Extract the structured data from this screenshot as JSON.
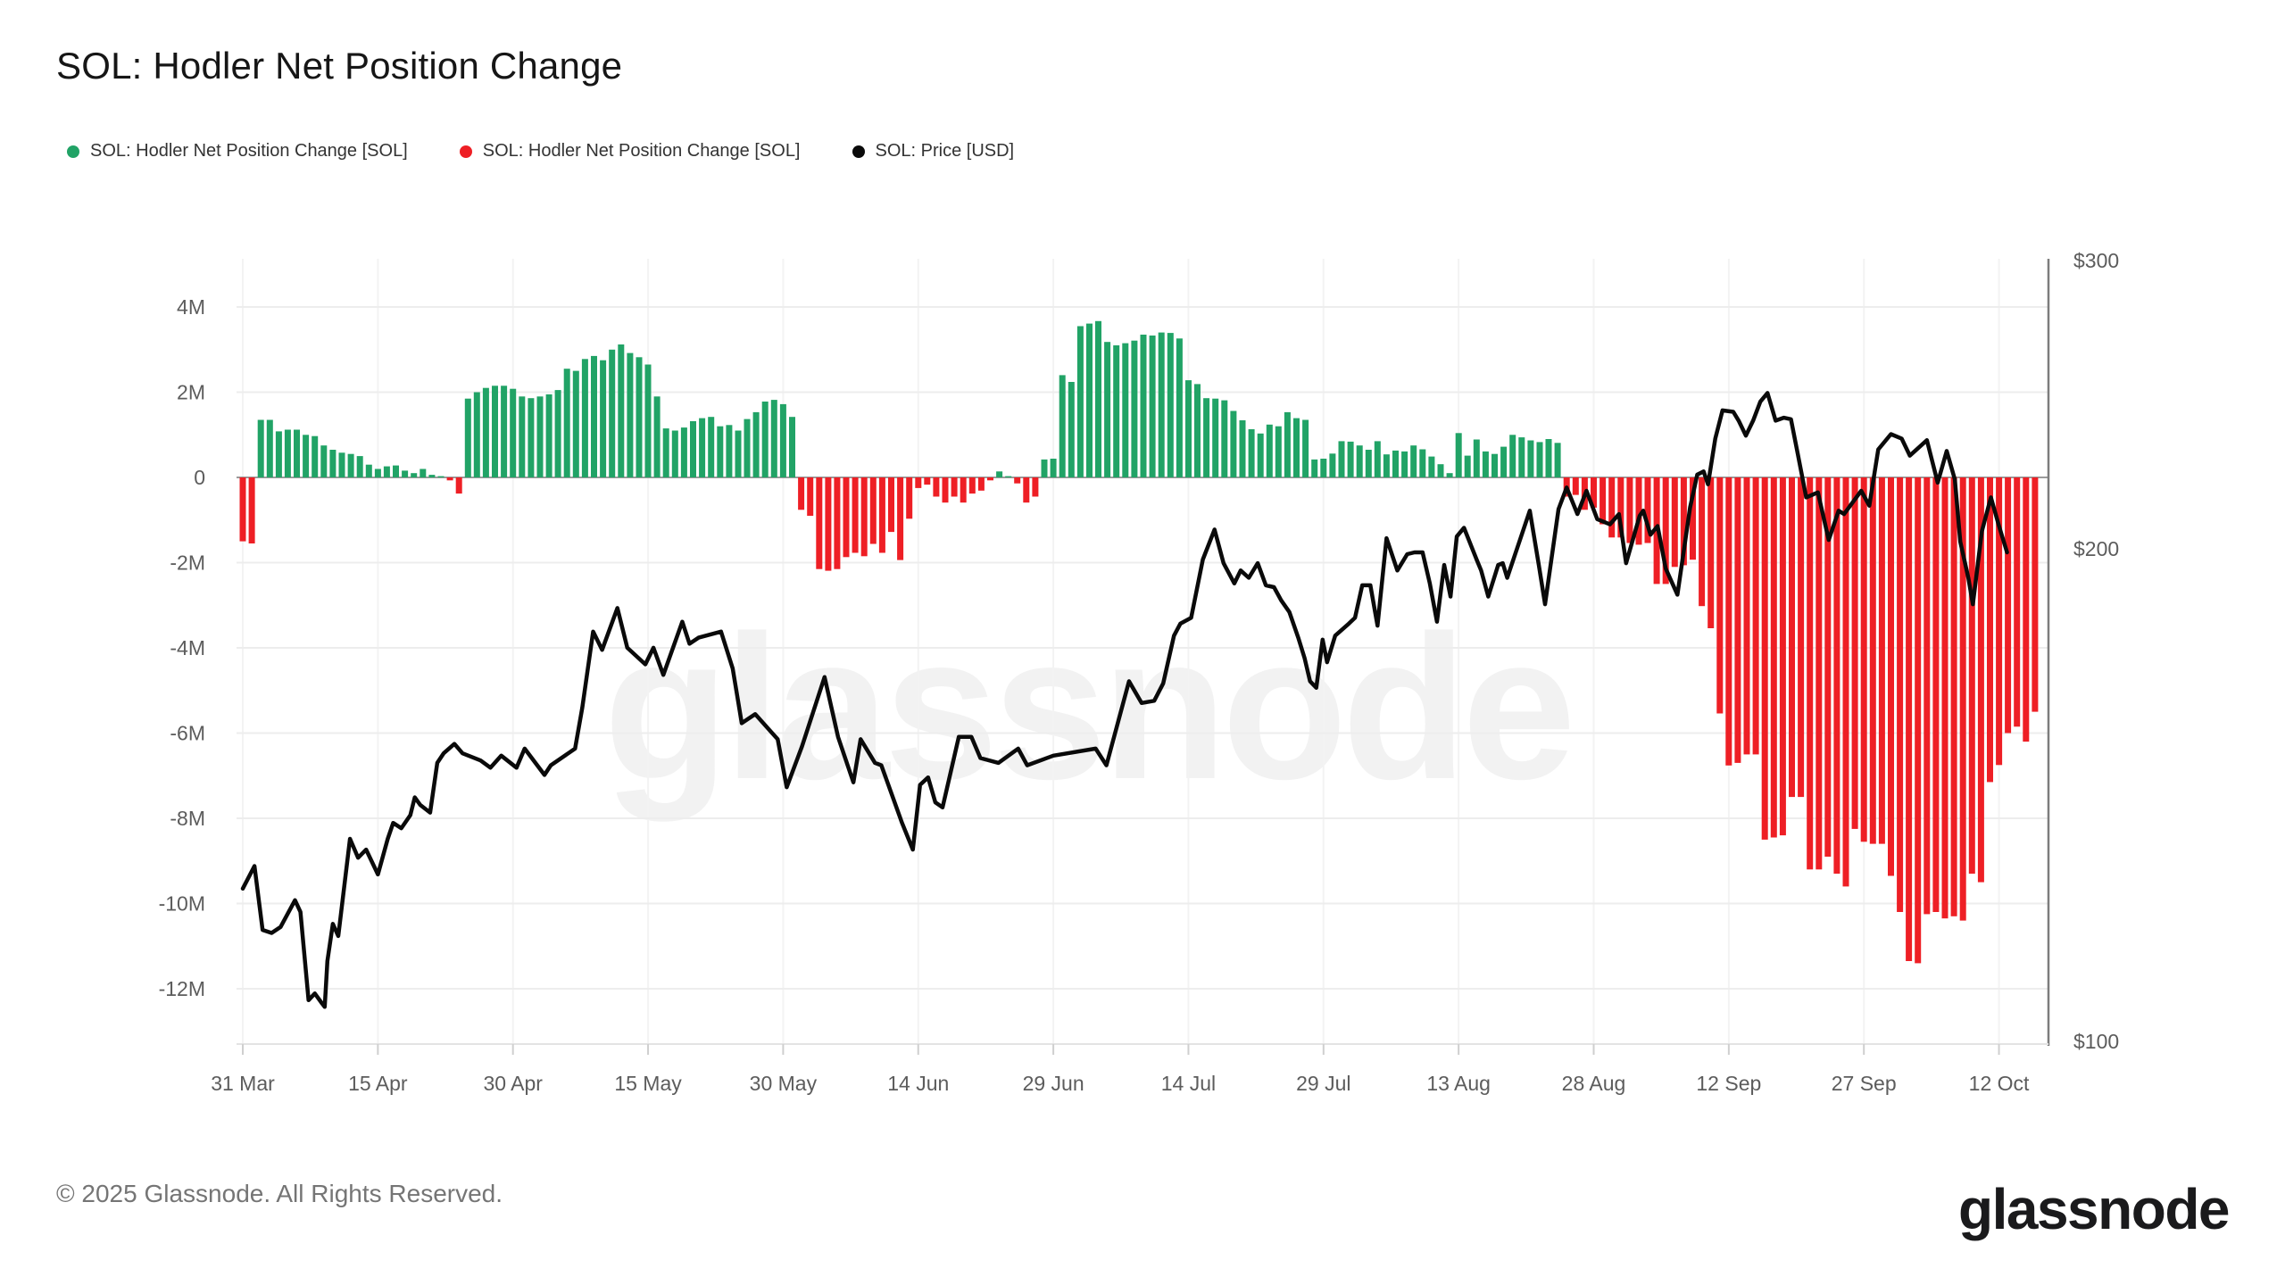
{
  "page": {
    "title": "SOL: Hodler Net Position Change",
    "watermark": "glassnode",
    "footer_copyright": "© 2025 Glassnode. All Rights Reserved.",
    "footer_logo": "glassnode"
  },
  "legend": {
    "items": [
      {
        "label": "SOL: Hodler Net Position Change [SOL]",
        "color": "#21a366"
      },
      {
        "label": "SOL: Hodler Net Position Change [SOL]",
        "color": "#ee1f25"
      },
      {
        "label": "SOL: Price [USD]",
        "color": "#0a0a0a"
      }
    ]
  },
  "chart_data": {
    "type": "bar+line",
    "title": "SOL: Hodler Net Position Change",
    "legend_position": "top-left",
    "grid": true,
    "x_axis": {
      "tick_labels": [
        "31 Mar",
        "15 Apr",
        "30 Apr",
        "15 May",
        "30 May",
        "14 Jun",
        "29 Jun",
        "14 Jul",
        "29 Jul",
        "13 Aug",
        "28 Aug",
        "12 Sep",
        "27 Sep",
        "12 Oct"
      ],
      "tick_interval_days": 15
    },
    "left_axis": {
      "unit": "M SOL",
      "tick_labels": [
        "4M",
        "2M",
        "0",
        "-2M",
        "-4M",
        "-6M",
        "-8M",
        "-10M",
        "-12M"
      ],
      "tick_values": [
        4,
        2,
        0,
        -2,
        -4,
        -6,
        -8,
        -10,
        -12
      ],
      "range": [
        -13.2,
        5.1
      ]
    },
    "right_axis": {
      "unit": "USD",
      "scale": "log",
      "tick_labels": [
        "$300",
        "$200",
        "$100"
      ],
      "tick_values": [
        300,
        200,
        100
      ],
      "range": [
        96,
        302
      ]
    },
    "series": [
      {
        "name": "SOL: Hodler Net Position Change [SOL]",
        "type": "bar",
        "unit": "millions of SOL, daily",
        "positive_color": "#21a366",
        "negative_color": "#ee1f25",
        "values": [
          -1.5,
          -1.55,
          1.35,
          1.35,
          1.08,
          1.12,
          1.12,
          1.0,
          0.97,
          0.75,
          0.65,
          0.58,
          0.55,
          0.5,
          0.3,
          0.2,
          0.26,
          0.28,
          0.16,
          0.1,
          0.2,
          0.06,
          0.03,
          -0.07,
          -0.38,
          1.85,
          2.0,
          2.1,
          2.15,
          2.15,
          2.08,
          1.9,
          1.86,
          1.9,
          1.95,
          2.05,
          2.55,
          2.5,
          2.78,
          2.85,
          2.75,
          3.0,
          3.12,
          2.92,
          2.82,
          2.65,
          1.9,
          1.15,
          1.1,
          1.17,
          1.32,
          1.39,
          1.42,
          1.2,
          1.23,
          1.1,
          1.37,
          1.53,
          1.78,
          1.82,
          1.72,
          1.42,
          -0.76,
          -0.9,
          -2.15,
          -2.19,
          -2.15,
          -1.87,
          -1.77,
          -1.85,
          -1.56,
          -1.77,
          -1.28,
          -1.94,
          -0.97,
          -0.25,
          -0.17,
          -0.45,
          -0.59,
          -0.45,
          -0.59,
          -0.38,
          -0.31,
          -0.07,
          0.14,
          0.03,
          -0.14,
          -0.59,
          -0.45,
          0.42,
          0.44,
          2.4,
          2.24,
          3.55,
          3.61,
          3.67,
          3.18,
          3.1,
          3.15,
          3.21,
          3.35,
          3.33,
          3.4,
          3.39,
          3.26,
          2.28,
          2.19,
          1.86,
          1.85,
          1.81,
          1.56,
          1.34,
          1.13,
          1.03,
          1.24,
          1.2,
          1.53,
          1.39,
          1.35,
          0.42,
          0.44,
          0.56,
          0.85,
          0.84,
          0.75,
          0.65,
          0.85,
          0.54,
          0.63,
          0.61,
          0.75,
          0.66,
          0.49,
          0.31,
          0.1,
          1.04,
          0.51,
          0.89,
          0.61,
          0.55,
          0.72,
          1.0,
          0.94,
          0.87,
          0.83,
          0.9,
          0.81,
          -0.45,
          -0.41,
          -0.76,
          -0.71,
          -1.1,
          -1.41,
          -1.41,
          -1.54,
          -1.58,
          -1.54,
          -2.5,
          -2.5,
          -2.1,
          -2.06,
          -1.93,
          -3.02,
          -3.54,
          -5.54,
          -6.76,
          -6.7,
          -6.5,
          -6.5,
          -8.5,
          -8.45,
          -8.4,
          -7.5,
          -7.5,
          -9.2,
          -9.2,
          -8.9,
          -9.3,
          -9.6,
          -8.25,
          -8.55,
          -8.6,
          -8.6,
          -9.35,
          -10.2,
          -11.35,
          -11.4,
          -10.25,
          -10.2,
          -10.35,
          -10.3,
          -10.4,
          -9.3,
          -9.5,
          -7.15,
          -6.75,
          -6.0,
          -5.85,
          -6.2,
          -5.5
        ]
      },
      {
        "name": "SOL: Price [USD]",
        "type": "line",
        "axis": "right",
        "color": "#0a0a0a",
        "points": [
          [
            0,
            124
          ],
          [
            1.3,
            128
          ],
          [
            2.2,
            117
          ],
          [
            3.2,
            116.5
          ],
          [
            4.2,
            117.5
          ],
          [
            5.8,
            122
          ],
          [
            6.4,
            120
          ],
          [
            7.3,
            106
          ],
          [
            8,
            107
          ],
          [
            8.8,
            105.5
          ],
          [
            9.1,
            105
          ],
          [
            9.4,
            112
          ],
          [
            10,
            118
          ],
          [
            10.6,
            116
          ],
          [
            11.9,
            133
          ],
          [
            12.8,
            129.5
          ],
          [
            13.7,
            131
          ],
          [
            15,
            126.5
          ],
          [
            16.1,
            133
          ],
          [
            16.7,
            136
          ],
          [
            17.6,
            135
          ],
          [
            18.6,
            137.5
          ],
          [
            19.1,
            141
          ],
          [
            19.7,
            139.5
          ],
          [
            20.8,
            138
          ],
          [
            21.6,
            148
          ],
          [
            22.3,
            150
          ],
          [
            23.5,
            152
          ],
          [
            24.4,
            150
          ],
          [
            26.4,
            148.5
          ],
          [
            27.5,
            147
          ],
          [
            28.7,
            149.5
          ],
          [
            30.4,
            147
          ],
          [
            31.3,
            151
          ],
          [
            33.5,
            145.5
          ],
          [
            34.2,
            147.5
          ],
          [
            36.9,
            151
          ],
          [
            37.7,
            160
          ],
          [
            38.9,
            178
          ],
          [
            39.9,
            173.5
          ],
          [
            41.6,
            184
          ],
          [
            42.7,
            174
          ],
          [
            44.7,
            170
          ],
          [
            45.6,
            174
          ],
          [
            46.7,
            167.5
          ],
          [
            48.8,
            180.5
          ],
          [
            49.6,
            175
          ],
          [
            50.6,
            176.5
          ],
          [
            53.1,
            178
          ],
          [
            54.4,
            169
          ],
          [
            55.4,
            156.5
          ],
          [
            56.9,
            158.5
          ],
          [
            58.7,
            154.5
          ],
          [
            59.4,
            153
          ],
          [
            60.4,
            143
          ],
          [
            62.1,
            151.5
          ],
          [
            64.6,
            167
          ],
          [
            66.1,
            153.5
          ],
          [
            67.8,
            144
          ],
          [
            68.6,
            153
          ],
          [
            70.2,
            148
          ],
          [
            70.9,
            147.5
          ],
          [
            73.2,
            136
          ],
          [
            74.4,
            131
          ],
          [
            75.2,
            143.5
          ],
          [
            76.1,
            145
          ],
          [
            76.9,
            140
          ],
          [
            77.7,
            139
          ],
          [
            79.5,
            153.5
          ],
          [
            80.9,
            153.5
          ],
          [
            81.9,
            149
          ],
          [
            83.9,
            148
          ],
          [
            86.1,
            151
          ],
          [
            87.1,
            147.5
          ],
          [
            90,
            149.5
          ],
          [
            94.7,
            151
          ],
          [
            95.9,
            147.5
          ],
          [
            98.4,
            166
          ],
          [
            99.8,
            161
          ],
          [
            101.2,
            161.5
          ],
          [
            102.2,
            165.5
          ],
          [
            103.4,
            177
          ],
          [
            104.1,
            180
          ],
          [
            105.3,
            181.5
          ],
          [
            106.6,
            197
          ],
          [
            107.9,
            205.5
          ],
          [
            108.9,
            196
          ],
          [
            110.1,
            190.5
          ],
          [
            110.8,
            194
          ],
          [
            111.7,
            192
          ],
          [
            112.7,
            196
          ],
          [
            113.6,
            190
          ],
          [
            114.5,
            189.5
          ],
          [
            115.3,
            186
          ],
          [
            116.2,
            183
          ],
          [
            117.2,
            176.5
          ],
          [
            117.9,
            171.5
          ],
          [
            118.5,
            166
          ],
          [
            119.2,
            164.5
          ],
          [
            119.9,
            176
          ],
          [
            120.4,
            170.5
          ],
          [
            121.3,
            177
          ],
          [
            122.8,
            180
          ],
          [
            123.5,
            181.5
          ],
          [
            124.3,
            190
          ],
          [
            125.2,
            190
          ],
          [
            126,
            179.5
          ],
          [
            127,
            203
          ],
          [
            128.2,
            194
          ],
          [
            129.3,
            198.5
          ],
          [
            130.1,
            199
          ],
          [
            131,
            199
          ],
          [
            131.8,
            190.5
          ],
          [
            132.6,
            180.5
          ],
          [
            133.4,
            195.5
          ],
          [
            134.1,
            187
          ],
          [
            134.8,
            203.5
          ],
          [
            135.6,
            206
          ],
          [
            137,
            197
          ],
          [
            137.5,
            194
          ],
          [
            138.3,
            187
          ],
          [
            139.4,
            195.5
          ],
          [
            139.9,
            196
          ],
          [
            140.4,
            192
          ],
          [
            142.9,
            211
          ],
          [
            143.9,
            195.5
          ],
          [
            144.6,
            185
          ],
          [
            146.1,
            211.5
          ],
          [
            147,
            218
          ],
          [
            148.2,
            210
          ],
          [
            149.2,
            217
          ],
          [
            150.4,
            208.5
          ],
          [
            151.8,
            207
          ],
          [
            152.8,
            210
          ],
          [
            153.6,
            196
          ],
          [
            155.1,
            209.5
          ],
          [
            155.5,
            211
          ],
          [
            156.3,
            204
          ],
          [
            157.1,
            206.5
          ],
          [
            158,
            194.5
          ],
          [
            159.3,
            187.5
          ],
          [
            160.7,
            212
          ],
          [
            161.5,
            222
          ],
          [
            162.2,
            223
          ],
          [
            162.7,
            219
          ],
          [
            163.5,
            233.5
          ],
          [
            164.3,
            243
          ],
          [
            165.5,
            242.5
          ],
          [
            166.1,
            239.5
          ],
          [
            166.9,
            234.5
          ],
          [
            167.7,
            239.5
          ],
          [
            168.5,
            246
          ],
          [
            169.3,
            249
          ],
          [
            170.2,
            239.5
          ],
          [
            171.1,
            240.5
          ],
          [
            171.9,
            240
          ],
          [
            172.6,
            229.5
          ],
          [
            173.6,
            215
          ],
          [
            174.9,
            216.5
          ],
          [
            176.1,
            202.5
          ],
          [
            177.2,
            211
          ],
          [
            177.8,
            210
          ],
          [
            179.7,
            217
          ],
          [
            180.6,
            212.5
          ],
          [
            181.6,
            230
          ],
          [
            183,
            235
          ],
          [
            184.2,
            233.5
          ],
          [
            185.1,
            228
          ],
          [
            187,
            233
          ],
          [
            188.2,
            219.5
          ],
          [
            189.2,
            229.5
          ],
          [
            190.1,
            220.5
          ],
          [
            190.7,
            202
          ],
          [
            191.6,
            192
          ],
          [
            192.1,
            185
          ],
          [
            193.1,
            205
          ],
          [
            194.1,
            215
          ],
          [
            195,
            206.5
          ],
          [
            195.9,
            199
          ]
        ]
      }
    ]
  }
}
